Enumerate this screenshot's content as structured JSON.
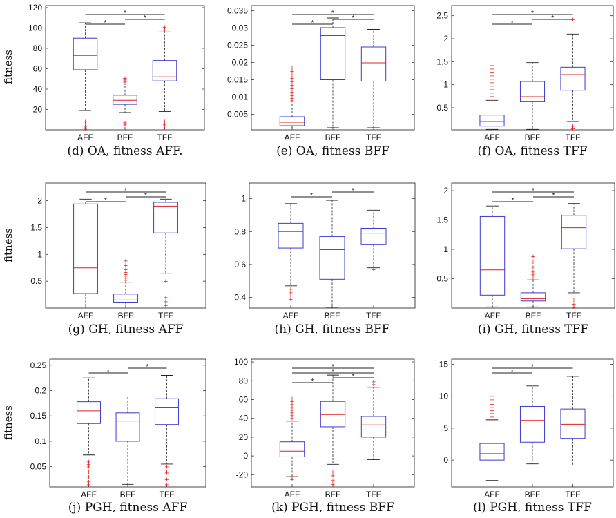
{
  "figure": {
    "shared_ylabel": "fitness"
  },
  "chart_data": [
    {
      "id": "d",
      "type": "box",
      "caption": "(d) OA, fitness AFF.",
      "ylabel": "fitness",
      "categories": [
        "AFF",
        "BFF",
        "TFF"
      ],
      "yticks": [
        20,
        40,
        60,
        80,
        100,
        120
      ],
      "ylim": [
        0,
        122
      ],
      "boxes": [
        {
          "category": "AFF",
          "lower_whisker": 19,
          "q1": 59,
          "median": 73,
          "q3": 90,
          "upper_whisker": 105,
          "outliers": [
            1,
            3,
            6,
            8
          ]
        },
        {
          "category": "BFF",
          "lower_whisker": 17,
          "q1": 25,
          "median": 29,
          "q3": 34,
          "upper_whisker": 45,
          "outliers": [
            5,
            7,
            47,
            49,
            51
          ]
        },
        {
          "category": "TFF",
          "lower_whisker": 18,
          "q1": 48,
          "median": 52,
          "q3": 68,
          "upper_whisker": 96,
          "outliers": [
            2,
            5,
            8,
            98,
            101
          ]
        }
      ],
      "significance": [
        {
          "from": "AFF",
          "to": "BFF",
          "marker": "*",
          "level": 0
        },
        {
          "from": "BFF",
          "to": "TFF",
          "marker": "*",
          "level": 1
        },
        {
          "from": "AFF",
          "to": "TFF",
          "marker": "*",
          "level": 2
        }
      ]
    },
    {
      "id": "e",
      "type": "box",
      "caption": "(e) OA, fitness BFF",
      "categories": [
        "AFF",
        "BFF",
        "TFF"
      ],
      "yticks": [
        0.005,
        0.01,
        0.015,
        0.02,
        0.025,
        0.03,
        0.035
      ],
      "ytick_labels": [
        "0.005",
        "0.01",
        "0.015",
        "0.02",
        "0.025",
        "0.03",
        "0.035"
      ],
      "ylim": [
        0.0005,
        0.0365
      ],
      "boxes": [
        {
          "category": "AFF",
          "lower_whisker": 0.001,
          "q1": 0.0017,
          "median": 0.0027,
          "q3": 0.0043,
          "upper_whisker": 0.008,
          "outliers": [
            0.009,
            0.0097,
            0.0105,
            0.0115,
            0.0125,
            0.0135,
            0.0145,
            0.0155,
            0.0165,
            0.0175,
            0.0185
          ]
        },
        {
          "category": "BFF",
          "lower_whisker": 0.0011,
          "q1": 0.015,
          "median": 0.0278,
          "q3": 0.0301,
          "upper_whisker": 0.0329,
          "outliers": []
        },
        {
          "category": "TFF",
          "lower_whisker": 0.0011,
          "q1": 0.0146,
          "median": 0.0199,
          "q3": 0.0245,
          "upper_whisker": 0.0296,
          "outliers": []
        }
      ],
      "significance": [
        {
          "from": "AFF",
          "to": "BFF",
          "marker": "*",
          "level": 0
        },
        {
          "from": "BFF",
          "to": "TFF",
          "marker": "*",
          "level": 1
        },
        {
          "from": "AFF",
          "to": "TFF",
          "marker": "*",
          "level": 2
        }
      ]
    },
    {
      "id": "f",
      "type": "box",
      "caption": "(f) OA, fitness TFF",
      "categories": [
        "AFF",
        "BFF",
        "TFF"
      ],
      "yticks": [
        0.5,
        1,
        1.5,
        2,
        2.5
      ],
      "ytick_labels": [
        "0.5",
        "1",
        "1.5",
        "2",
        "2.5"
      ],
      "ylim": [
        0.02,
        2.72
      ],
      "boxes": [
        {
          "category": "AFF",
          "lower_whisker": 0.03,
          "q1": 0.1,
          "median": 0.2,
          "q3": 0.34,
          "upper_whisker": 0.66,
          "outliers": [
            0.75,
            0.82,
            0.9,
            0.97,
            1.05,
            1.12,
            1.2,
            1.28,
            1.35,
            1.42
          ]
        },
        {
          "category": "BFF",
          "lower_whisker": 0.03,
          "q1": 0.64,
          "median": 0.74,
          "q3": 1.07,
          "upper_whisker": 1.48,
          "outliers": []
        },
        {
          "category": "TFF",
          "lower_whisker": 0.2,
          "q1": 0.88,
          "median": 1.22,
          "q3": 1.38,
          "upper_whisker": 2.1,
          "outliers": [
            0.05,
            0.1,
            2.42
          ]
        }
      ],
      "significance": [
        {
          "from": "AFF",
          "to": "BFF",
          "marker": "*",
          "level": 0
        },
        {
          "from": "BFF",
          "to": "TFF",
          "marker": "*",
          "level": 1
        },
        {
          "from": "AFF",
          "to": "TFF",
          "marker": "*",
          "level": 2
        }
      ]
    },
    {
      "id": "g",
      "type": "box",
      "caption": "(g) GH, fitness AFF",
      "ylabel": "fitness",
      "categories": [
        "AFF",
        "BFF",
        "TFF"
      ],
      "yticks": [
        0.5,
        1,
        1.5,
        2
      ],
      "ytick_labels": [
        "0.5",
        "1",
        "1.5",
        "2"
      ],
      "ylim": [
        0.0,
        2.33
      ],
      "boxes": [
        {
          "category": "AFF",
          "lower_whisker": 0.02,
          "q1": 0.27,
          "median": 0.75,
          "q3": 1.94,
          "upper_whisker": 2.03,
          "outliers": []
        },
        {
          "category": "BFF",
          "lower_whisker": 0.02,
          "q1": 0.11,
          "median": 0.15,
          "q3": 0.26,
          "upper_whisker": 0.48,
          "outliers": [
            0.52,
            0.56,
            0.6,
            0.63,
            0.67,
            0.72,
            0.8,
            0.88
          ]
        },
        {
          "category": "TFF",
          "lower_whisker": 0.64,
          "q1": 1.4,
          "median": 1.9,
          "q3": 1.97,
          "upper_whisker": 2.03,
          "outliers": [
            0.05,
            0.12,
            0.2,
            0.5
          ]
        }
      ],
      "significance": [
        {
          "from": "AFF",
          "to": "BFF",
          "marker": "*",
          "level": 0
        },
        {
          "from": "BFF",
          "to": "TFF",
          "marker": "*",
          "level": 1
        },
        {
          "from": "AFF",
          "to": "TFF",
          "marker": "*",
          "level": 2
        }
      ]
    },
    {
      "id": "h",
      "type": "box",
      "caption": "(h) GH, fitness BFF",
      "categories": [
        "AFF",
        "BFF",
        "TFF"
      ],
      "yticks": [
        0.4,
        0.6,
        0.8,
        1
      ],
      "ytick_labels": [
        "0.4",
        "0.6",
        "0.8",
        "1"
      ],
      "ylim": [
        0.335,
        1.095
      ],
      "boxes": [
        {
          "category": "AFF",
          "lower_whisker": 0.47,
          "q1": 0.7,
          "median": 0.8,
          "q3": 0.85,
          "upper_whisker": 0.97,
          "outliers": [
            0.39,
            0.41,
            0.43,
            0.45
          ]
        },
        {
          "category": "BFF",
          "lower_whisker": 0.34,
          "q1": 0.51,
          "median": 0.69,
          "q3": 0.77,
          "upper_whisker": 0.99,
          "outliers": []
        },
        {
          "category": "TFF",
          "lower_whisker": 0.58,
          "q1": 0.72,
          "median": 0.79,
          "q3": 0.82,
          "upper_whisker": 0.93,
          "outliers": [
            0.57
          ]
        }
      ],
      "significance": [
        {
          "from": "AFF",
          "to": "BFF",
          "marker": "*",
          "level": 0
        },
        {
          "from": "BFF",
          "to": "TFF",
          "marker": "*",
          "level": 1
        }
      ]
    },
    {
      "id": "i",
      "type": "box",
      "caption": "(i) GH, fitness TFF",
      "categories": [
        "AFF",
        "BFF",
        "TFF"
      ],
      "yticks": [
        0.5,
        1,
        1.5,
        2
      ],
      "ytick_labels": [
        "0.5",
        "1",
        "1.5",
        "2"
      ],
      "ylim": [
        0.0,
        2.13
      ],
      "boxes": [
        {
          "category": "AFF",
          "lower_whisker": 0.02,
          "q1": 0.22,
          "median": 0.65,
          "q3": 1.56,
          "upper_whisker": 1.74,
          "outliers": []
        },
        {
          "category": "BFF",
          "lower_whisker": 0.02,
          "q1": 0.12,
          "median": 0.16,
          "q3": 0.26,
          "upper_whisker": 0.48,
          "outliers": [
            0.52,
            0.57,
            0.62,
            0.7,
            0.79,
            0.88
          ]
        },
        {
          "category": "TFF",
          "lower_whisker": 0.26,
          "q1": 1.01,
          "median": 1.37,
          "q3": 1.58,
          "upper_whisker": 1.78,
          "outliers": [
            0.02,
            0.07,
            0.14
          ]
        }
      ],
      "significance": [
        {
          "from": "AFF",
          "to": "BFF",
          "marker": "*",
          "level": 0
        },
        {
          "from": "BFF",
          "to": "TFF",
          "marker": "*",
          "level": 1
        },
        {
          "from": "AFF",
          "to": "TFF",
          "marker": "*",
          "level": 2
        }
      ]
    },
    {
      "id": "j",
      "type": "box",
      "caption": "(j) PGH, fitness AFF",
      "ylabel": "fitness",
      "categories": [
        "AFF",
        "BFF",
        "TFF"
      ],
      "yticks": [
        0.05,
        0.1,
        0.15,
        0.2,
        0.25
      ],
      "ytick_labels": [
        "0.05",
        "0.1",
        "0.15",
        "0.2",
        "0.25"
      ],
      "ylim": [
        0.01,
        0.262
      ],
      "boxes": [
        {
          "category": "AFF",
          "lower_whisker": 0.073,
          "q1": 0.135,
          "median": 0.16,
          "q3": 0.178,
          "upper_whisker": 0.225,
          "outliers": [
            0.015,
            0.02,
            0.03,
            0.04,
            0.05,
            0.055,
            0.06
          ]
        },
        {
          "category": "BFF",
          "lower_whisker": 0.015,
          "q1": 0.1,
          "median": 0.14,
          "q3": 0.156,
          "upper_whisker": 0.189,
          "outliers": []
        },
        {
          "category": "TFF",
          "lower_whisker": 0.055,
          "q1": 0.133,
          "median": 0.166,
          "q3": 0.184,
          "upper_whisker": 0.23,
          "outliers": [
            0.015,
            0.025,
            0.038,
            0.04,
            0.05
          ]
        }
      ],
      "significance": [
        {
          "from": "AFF",
          "to": "BFF",
          "marker": "*",
          "level": 0
        },
        {
          "from": "BFF",
          "to": "TFF",
          "marker": "*",
          "level": 1
        }
      ]
    },
    {
      "id": "k",
      "type": "box",
      "caption": "(k) PGH, fitness BFF",
      "categories": [
        "AFF",
        "BFF",
        "TFF"
      ],
      "yticks": [
        -20,
        0,
        20,
        40,
        60,
        80,
        100
      ],
      "ytick_labels": [
        "-20",
        "0",
        "20",
        "40",
        "60",
        "80",
        "100"
      ],
      "ylim": [
        -33,
        103
      ],
      "boxes": [
        {
          "category": "AFF",
          "lower_whisker": -22,
          "q1": -1,
          "median": 5,
          "q3": 15,
          "upper_whisker": 37,
          "outliers": [
            -22,
            -25,
            40,
            43,
            46,
            49,
            52,
            55,
            58,
            61
          ]
        },
        {
          "category": "BFF",
          "lower_whisker": -9,
          "q1": 31,
          "median": 44,
          "q3": 58,
          "upper_whisker": 86,
          "outliers": [
            -17,
            -21,
            -26,
            -30
          ]
        },
        {
          "category": "TFF",
          "lower_whisker": -4,
          "q1": 20,
          "median": 33,
          "q3": 42,
          "upper_whisker": 73,
          "outliers": [
            76,
            79
          ]
        }
      ],
      "significance": [
        {
          "from": "AFF",
          "to": "BFF",
          "marker": "*",
          "level": 0
        },
        {
          "from": "BFF",
          "to": "TFF",
          "marker": "*",
          "level": 1
        },
        {
          "from": "AFF",
          "to": "TFF",
          "marker": "*",
          "level": 2
        },
        {
          "from": "AFF",
          "to": "TFF",
          "marker": "*",
          "level": 3
        }
      ]
    },
    {
      "id": "l",
      "type": "box",
      "caption": "(l) PGH, fitness TFF",
      "categories": [
        "AFF",
        "BFF",
        "TFF"
      ],
      "yticks": [
        0,
        5,
        10,
        15
      ],
      "ytick_labels": [
        "0",
        "5",
        "10",
        "15"
      ],
      "ylim": [
        -4.2,
        15.8
      ],
      "boxes": [
        {
          "category": "AFF",
          "lower_whisker": -3.2,
          "q1": 0,
          "median": 1,
          "q3": 2.6,
          "upper_whisker": 6.3,
          "outliers": [
            6.8,
            7.3,
            7.8,
            8.3,
            8.8,
            9.5,
            10
          ]
        },
        {
          "category": "BFF",
          "lower_whisker": -0.6,
          "q1": 2.8,
          "median": 6.2,
          "q3": 8.4,
          "upper_whisker": 11.6,
          "outliers": []
        },
        {
          "category": "TFF",
          "lower_whisker": -0.9,
          "q1": 3.4,
          "median": 5.6,
          "q3": 8,
          "upper_whisker": 13.1,
          "outliers": []
        }
      ],
      "significance": [
        {
          "from": "AFF",
          "to": "BFF",
          "marker": "*",
          "level": 0
        },
        {
          "from": "AFF",
          "to": "TFF",
          "marker": "*",
          "level": 1
        }
      ]
    }
  ]
}
